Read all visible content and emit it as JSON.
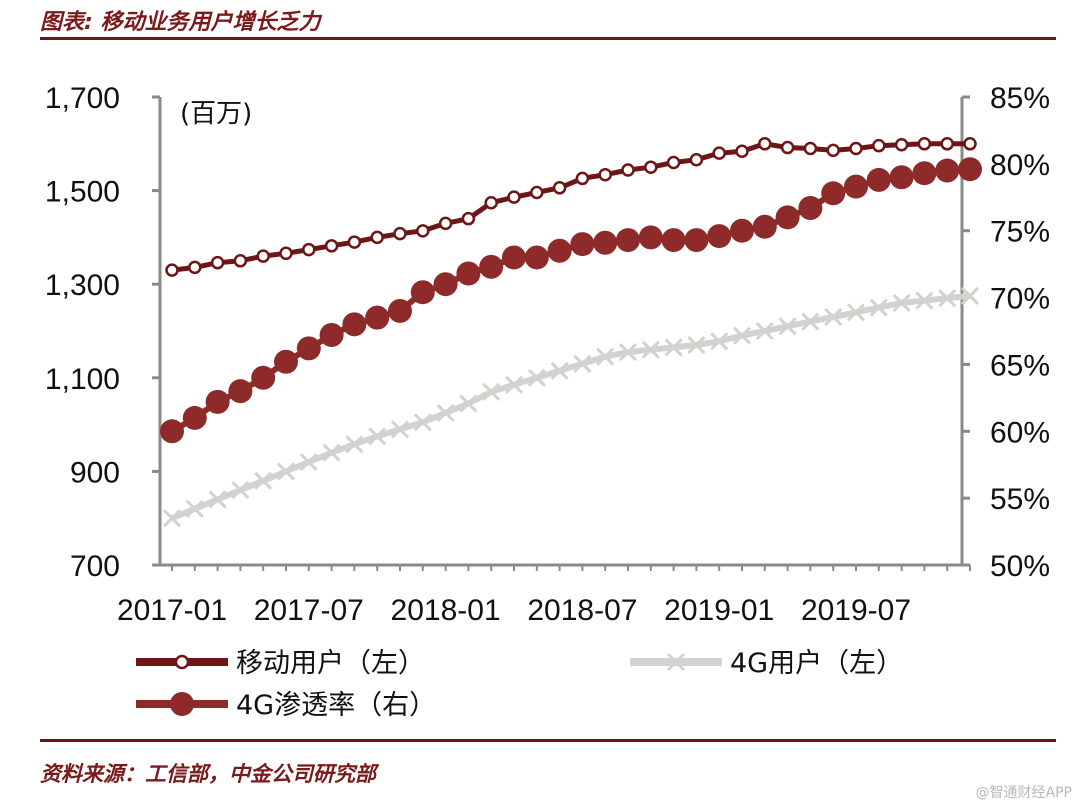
{
  "header": {
    "title": "图表: 移动业务用户增长乏力"
  },
  "footer": {
    "source": "资料来源：工信部，中金公司研究部",
    "watermark": "@智通财经APP"
  },
  "chart_data": {
    "type": "line",
    "unit_left": "(百万)",
    "x_tick_labels": [
      "2017-01",
      "2017-07",
      "2018-01",
      "2018-07",
      "2019-01",
      "2019-07"
    ],
    "y_left": {
      "ticks": [
        "1,700",
        "1,500",
        "1,300",
        "1,100",
        "900",
        "700"
      ],
      "ylim": [
        700,
        1700
      ]
    },
    "y_right": {
      "ticks": [
        "85%",
        "80%",
        "75%",
        "70%",
        "65%",
        "60%",
        "55%",
        "50%"
      ],
      "ylim": [
        50,
        85
      ]
    },
    "x": [
      "2017-01",
      "2017-02",
      "2017-03",
      "2017-04",
      "2017-05",
      "2017-06",
      "2017-07",
      "2017-08",
      "2017-09",
      "2017-10",
      "2017-11",
      "2017-12",
      "2018-01",
      "2018-02",
      "2018-03",
      "2018-04",
      "2018-05",
      "2018-06",
      "2018-07",
      "2018-08",
      "2018-09",
      "2018-10",
      "2018-11",
      "2018-12",
      "2019-01",
      "2019-02",
      "2019-03",
      "2019-04",
      "2019-05",
      "2019-06",
      "2019-07",
      "2019-08",
      "2019-09",
      "2019-10",
      "2019-11",
      "2019-12"
    ],
    "series": [
      {
        "name": "移动用户（左）",
        "axis": "left",
        "color": "#6e1616",
        "marker": "open-circle",
        "values": [
          1330,
          1336,
          1346,
          1350,
          1360,
          1366,
          1374,
          1382,
          1390,
          1400,
          1408,
          1414,
          1430,
          1440,
          1474,
          1486,
          1496,
          1506,
          1526,
          1534,
          1544,
          1550,
          1560,
          1566,
          1580,
          1584,
          1600,
          1592,
          1590,
          1586,
          1590,
          1596,
          1598,
          1600,
          1600,
          1600
        ]
      },
      {
        "name": "4G用户（左）",
        "axis": "left",
        "color": "#d2d2ce",
        "marker": "x",
        "values": [
          800,
          820,
          840,
          860,
          880,
          900,
          920,
          940,
          958,
          975,
          990,
          1005,
          1025,
          1045,
          1070,
          1085,
          1100,
          1115,
          1130,
          1145,
          1155,
          1160,
          1165,
          1170,
          1178,
          1190,
          1200,
          1210,
          1220,
          1230,
          1240,
          1250,
          1260,
          1265,
          1270,
          1275
        ]
      },
      {
        "name": "4G渗透率（右）",
        "axis": "right",
        "color": "#8e2a2a",
        "marker": "filled-circle",
        "values": [
          60.0,
          61.0,
          62.2,
          63.0,
          64.0,
          65.2,
          66.2,
          67.2,
          68.0,
          68.5,
          69.0,
          70.4,
          71.0,
          71.8,
          72.3,
          73.0,
          73.0,
          73.5,
          74.0,
          74.1,
          74.3,
          74.5,
          74.3,
          74.3,
          74.6,
          75.0,
          75.3,
          76.0,
          76.7,
          77.8,
          78.3,
          78.8,
          79.0,
          79.3,
          79.5,
          79.6
        ]
      }
    ],
    "legend_placement": "bottom",
    "grid": false
  }
}
